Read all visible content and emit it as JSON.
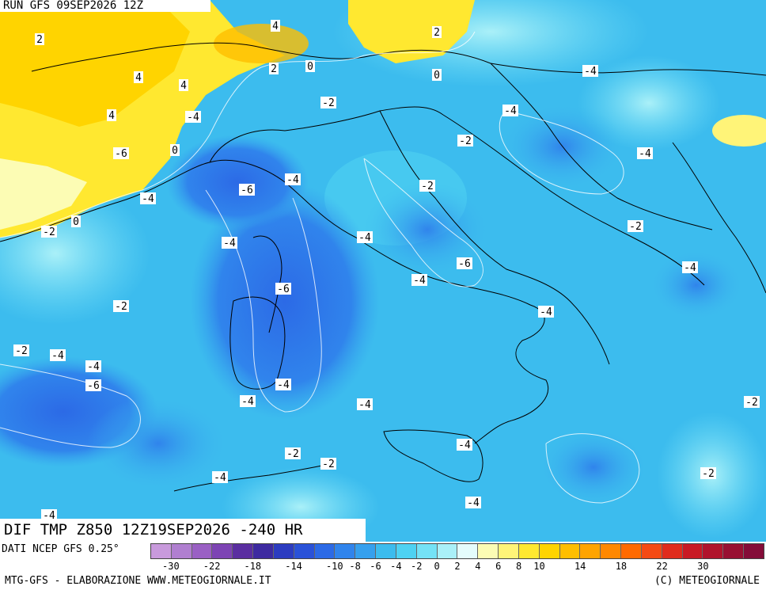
{
  "header": {
    "run_label": "RUN GFS 09SEP2026 12Z"
  },
  "footer": {
    "title": "DIF TMP Z850 12Z19SEP2026 -240 HR",
    "source": "DATI NCEP GFS 0.25°",
    "credit_left": "MTG-GFS - ELABORAZIONE WWW.METEOGIORNALE.IT",
    "credit_right": "(C) METEOGIORNALE"
  },
  "legend": {
    "colors": [
      "#c89adc",
      "#b07fd0",
      "#9a60c4",
      "#7d44b4",
      "#5a2ea0",
      "#3d2aa0",
      "#2c3cc0",
      "#2a52d8",
      "#2c6ae6",
      "#3084ec",
      "#35a0ee",
      "#3cbcee",
      "#4ed2f2",
      "#74e2f6",
      "#aaf0f8",
      "#e4fcfc",
      "#fcfcb4",
      "#fff478",
      "#ffe830",
      "#ffd400",
      "#ffbe00",
      "#ffa400",
      "#ff8800",
      "#ff6a00",
      "#f44a14",
      "#e02c1c",
      "#c81a24",
      "#b0142c",
      "#981032",
      "#840c38"
    ],
    "ticks": [
      "-30",
      "-22",
      "-18",
      "-14",
      "-10",
      "-8",
      "-6",
      "-4",
      "-2",
      "0",
      "2",
      "4",
      "6",
      "8",
      "10",
      "14",
      "18",
      "22",
      "30"
    ]
  },
  "map_labels": [
    {
      "text": "2"
    },
    {
      "text": "4"
    },
    {
      "text": "4"
    },
    {
      "text": "4"
    },
    {
      "text": "2"
    },
    {
      "text": "0"
    },
    {
      "text": "2"
    },
    {
      "text": "-4"
    },
    {
      "text": "0"
    },
    {
      "text": "4"
    },
    {
      "text": "0"
    },
    {
      "text": "-2"
    },
    {
      "text": "-4"
    },
    {
      "text": "-4"
    },
    {
      "text": "-2"
    },
    {
      "text": "-6"
    },
    {
      "text": "-4"
    },
    {
      "text": "-4"
    },
    {
      "text": "-2"
    },
    {
      "text": "-4"
    },
    {
      "text": "0"
    },
    {
      "text": "-2"
    },
    {
      "text": "-6"
    },
    {
      "text": "-4"
    },
    {
      "text": "-4"
    },
    {
      "text": "-6"
    },
    {
      "text": "-4"
    },
    {
      "text": "-2"
    },
    {
      "text": "-4"
    },
    {
      "text": "-6"
    },
    {
      "text": "-4"
    },
    {
      "text": "-2"
    },
    {
      "text": "-4"
    },
    {
      "text": "-4"
    },
    {
      "text": "-4"
    },
    {
      "text": "-6"
    },
    {
      "text": "-4"
    },
    {
      "text": "-4"
    },
    {
      "text": "-2"
    },
    {
      "text": "-2"
    },
    {
      "text": "-4"
    },
    {
      "text": "-2"
    },
    {
      "text": "-4"
    },
    {
      "text": "-4"
    },
    {
      "text": "-2"
    },
    {
      "text": "-2"
    },
    {
      "text": "-4"
    }
  ]
}
